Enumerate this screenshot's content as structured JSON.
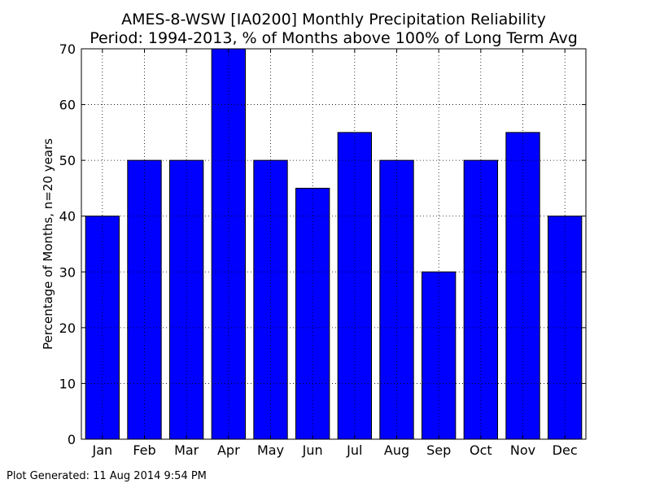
{
  "chart_data": {
    "type": "bar",
    "title": "AMES-8-WSW [IA0200] Monthly Precipitation Reliability",
    "subtitle": "Period: 1994-2013, % of Months above 100% of Long Term Avg",
    "xlabel": "",
    "ylabel": "Percentage of Months, n=20 years",
    "categories": [
      "Jan",
      "Feb",
      "Mar",
      "Apr",
      "May",
      "Jun",
      "Jul",
      "Aug",
      "Sep",
      "Oct",
      "Nov",
      "Dec"
    ],
    "values": [
      40,
      50,
      50,
      70,
      50,
      45,
      55,
      50,
      30,
      50,
      55,
      40
    ],
    "ylim": [
      0,
      70
    ],
    "yticks": [
      0,
      10,
      20,
      30,
      40,
      50,
      60,
      70
    ],
    "grid": true,
    "bar_color": "#0000ff",
    "legend": "none"
  },
  "footer": "Plot Generated: 11 Aug 2014 9:54 PM"
}
